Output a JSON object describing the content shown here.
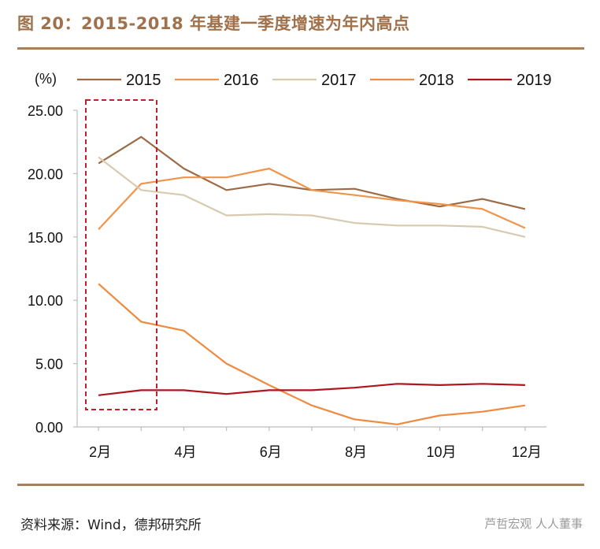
{
  "header": {
    "title": "图 20：2015-2018 年基建一季度增速为年内高点"
  },
  "footer": {
    "source": "资料来源：Wind，德邦研究所",
    "watermark": "芦哲宏观 人人董事"
  },
  "colors": {
    "accent": "#a8805a",
    "title": "#a0714a",
    "highlight": "#c0202a"
  },
  "chart_data": {
    "type": "line",
    "title": "",
    "ylabel": "(%)",
    "xlabel": "",
    "ylim": [
      0,
      25
    ],
    "yticks": [
      "0.00",
      "5.00",
      "10.00",
      "15.00",
      "20.00",
      "25.00"
    ],
    "x": [
      2,
      3,
      4,
      5,
      6,
      7,
      8,
      9,
      10,
      11,
      12
    ],
    "xtick_labels": [
      "2月",
      "4月",
      "6月",
      "8月",
      "10月",
      "12月"
    ],
    "xtick_values": [
      2,
      4,
      6,
      8,
      10,
      12
    ],
    "series": [
      {
        "name": "2015",
        "color": "#9c6b45",
        "values": [
          20.8,
          22.9,
          20.4,
          18.7,
          19.2,
          18.7,
          18.8,
          18.0,
          17.4,
          18.0,
          17.2
        ]
      },
      {
        "name": "2016",
        "color": "#f0944a",
        "values": [
          15.6,
          19.2,
          19.7,
          19.7,
          20.4,
          18.7,
          18.3,
          17.9,
          17.6,
          17.2,
          15.7
        ]
      },
      {
        "name": "2017",
        "color": "#d8cab0",
        "values": [
          21.3,
          18.7,
          18.3,
          16.7,
          16.8,
          16.7,
          16.1,
          15.9,
          15.9,
          15.8,
          15.0
        ]
      },
      {
        "name": "2018",
        "color": "#ee8a42",
        "values": [
          11.3,
          8.3,
          7.6,
          5.0,
          3.3,
          1.7,
          0.6,
          0.2,
          0.9,
          1.2,
          1.7
        ]
      },
      {
        "name": "2019",
        "color": "#b0141e",
        "values": [
          2.5,
          2.9,
          2.9,
          2.6,
          2.9,
          2.9,
          3.1,
          3.4,
          3.3,
          3.4,
          3.3
        ]
      }
    ],
    "annotation": "highlight-box-around-feb-mar"
  }
}
